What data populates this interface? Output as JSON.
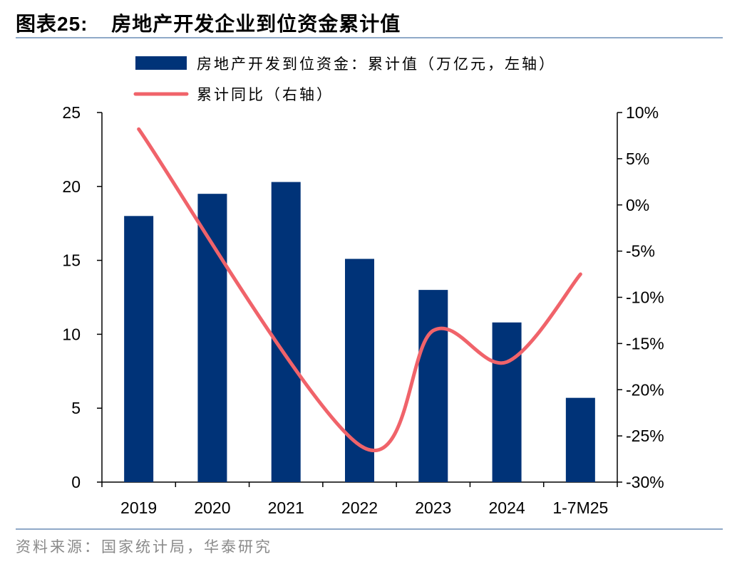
{
  "header": {
    "figure_label": "图表",
    "figure_number": "25:",
    "title_text": "房地产开发企业到位资金累计值"
  },
  "footer": {
    "source": "资料来源：国家统计局，华泰研究"
  },
  "colors": {
    "bar": "#003378",
    "line": "#f0636a",
    "rule": "#8fa9c8"
  },
  "chart_data": {
    "type": "bar",
    "categories": [
      "2019",
      "2020",
      "2021",
      "2022",
      "2023",
      "2024",
      "1-7M25"
    ],
    "series": [
      {
        "name": "房地产开发到位资金：累计值（万亿元，左轴）",
        "type": "bar",
        "axis": "left",
        "values": [
          18.0,
          19.5,
          20.3,
          15.1,
          13.0,
          10.8,
          5.7
        ]
      },
      {
        "name": "累计同比（右轴）",
        "type": "line",
        "axis": "right",
        "values": [
          8.2,
          null,
          null,
          -26.0,
          -13.6,
          -17.0,
          -7.5
        ]
      }
    ],
    "left_axis": {
      "min": 0,
      "max": 25,
      "ticks": [
        "0",
        "5",
        "10",
        "15",
        "20",
        "25"
      ]
    },
    "right_axis": {
      "min": -30,
      "max": 10,
      "ticks": [
        "-30%",
        "-25%",
        "-20%",
        "-15%",
        "-10%",
        "-5%",
        "0%",
        "5%",
        "10%"
      ]
    },
    "legend_position": "top",
    "grid": false
  }
}
